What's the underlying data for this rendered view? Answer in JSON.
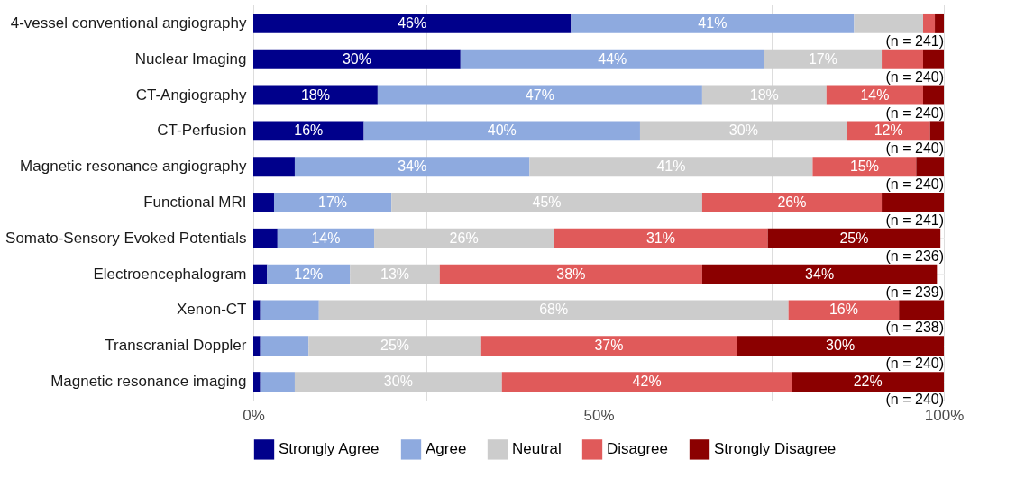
{
  "chart_data": {
    "type": "bar",
    "orientation": "horizontal",
    "stacked": true,
    "categories": [
      "4-vessel conventional angiography",
      "Nuclear Imaging",
      "CT-Angiography",
      "CT-Perfusion",
      "Magnetic resonance angiography",
      "Functional MRI",
      "Somato-Sensory Evoked Potentials",
      "Electroencephalogram",
      "Xenon-CT",
      "Transcranial Doppler",
      "Magnetic resonance imaging"
    ],
    "series": [
      {
        "name": "Strongly Agree",
        "color": "#00008b",
        "values": [
          46,
          30,
          18,
          16,
          6,
          3,
          3.5,
          2,
          1,
          1,
          1
        ],
        "value_labels": [
          "46%",
          "30%",
          "18%",
          "16%",
          null,
          null,
          null,
          null,
          null,
          null,
          null
        ]
      },
      {
        "name": "Agree",
        "color": "#8eaadf",
        "values": [
          41,
          44,
          47,
          40,
          34,
          17,
          14,
          12,
          8.5,
          7,
          5
        ],
        "value_labels": [
          "41%",
          "44%",
          "47%",
          "40%",
          "34%",
          "17%",
          "14%",
          "12%",
          null,
          null,
          null
        ]
      },
      {
        "name": "Neutral",
        "color": "#cccccc",
        "values": [
          10,
          17,
          18,
          30,
          41,
          45,
          26,
          13,
          68,
          25,
          30
        ],
        "value_labels": [
          null,
          "17%",
          "18%",
          "30%",
          "41%",
          "45%",
          "26%",
          "13%",
          "68%",
          "25%",
          "30%"
        ]
      },
      {
        "name": "Disagree",
        "color": "#e05a5a",
        "values": [
          1.7,
          6,
          14,
          12,
          15,
          26,
          31,
          38,
          16,
          37,
          42
        ],
        "value_labels": [
          null,
          null,
          "14%",
          "12%",
          "15%",
          "26%",
          "31%",
          "38%",
          "16%",
          "37%",
          "42%"
        ]
      },
      {
        "name": "Strongly Disagree",
        "color": "#8b0000",
        "values": [
          1.3,
          3,
          3,
          2,
          4,
          9,
          25,
          34,
          6.5,
          30,
          22
        ],
        "value_labels": [
          null,
          null,
          null,
          null,
          null,
          null,
          "25%",
          "34%",
          null,
          "30%",
          "22%"
        ]
      }
    ],
    "xlim": [
      0,
      100
    ],
    "xticks": [
      {
        "value": 0,
        "label": "0%"
      },
      {
        "value": 25,
        "label": null
      },
      {
        "value": 50,
        "label": "50%"
      },
      {
        "value": 75,
        "label": null
      },
      {
        "value": 100,
        "label": "100%"
      }
    ],
    "grid": true,
    "legend": "bottom",
    "annotations": [
      "(n = 241)",
      "(n = 240)",
      "(n = 240)",
      "(n = 240)",
      "(n = 240)",
      "(n = 241)",
      "(n = 236)",
      "(n = 239)",
      "(n = 238)",
      "(n = 240)",
      "(n = 240)"
    ]
  }
}
